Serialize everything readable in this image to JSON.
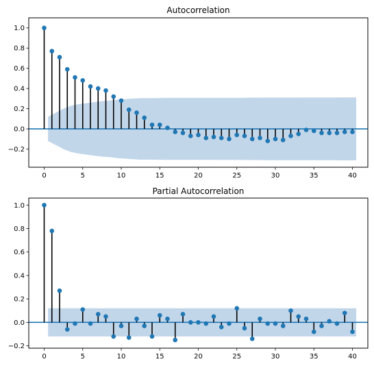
{
  "chart_data": [
    {
      "type": "stem",
      "title": "Autocorrelation",
      "xlabel": "",
      "ylabel": "",
      "xlim": [
        -2,
        42
      ],
      "ylim": [
        -0.38,
        1.1
      ],
      "xticks": [
        0,
        5,
        10,
        15,
        20,
        25,
        30,
        35,
        40
      ],
      "xtick_labels": [
        "0",
        "5",
        "10",
        "15",
        "20",
        "25",
        "30",
        "35",
        "40"
      ],
      "yticks": [
        -0.2,
        0.0,
        0.2,
        0.4,
        0.6,
        0.8,
        1.0
      ],
      "ytick_labels": [
        "−0.2",
        "0.0",
        "0.2",
        "0.4",
        "0.6",
        "0.8",
        "1.0"
      ],
      "grid": false,
      "lags": [
        0,
        1,
        2,
        3,
        4,
        5,
        6,
        7,
        8,
        9,
        10,
        11,
        12,
        13,
        14,
        15,
        16,
        17,
        18,
        19,
        20,
        21,
        22,
        23,
        24,
        25,
        26,
        27,
        28,
        29,
        30,
        31,
        32,
        33,
        34,
        35,
        36,
        37,
        38,
        39,
        40
      ],
      "values": [
        1.0,
        0.77,
        0.71,
        0.59,
        0.51,
        0.48,
        0.42,
        0.4,
        0.38,
        0.32,
        0.28,
        0.19,
        0.16,
        0.11,
        0.04,
        0.04,
        0.01,
        -0.03,
        -0.04,
        -0.07,
        -0.06,
        -0.09,
        -0.08,
        -0.09,
        -0.1,
        -0.06,
        -0.07,
        -0.1,
        -0.09,
        -0.12,
        -0.1,
        -0.11,
        -0.07,
        -0.05,
        -0.01,
        -0.02,
        -0.04,
        -0.04,
        -0.04,
        -0.03,
        -0.03
      ],
      "confidence_band": {
        "lags": [
          0,
          1,
          2,
          3,
          4,
          5,
          6,
          7,
          8,
          9,
          10,
          11,
          12,
          13,
          14,
          15,
          16,
          17,
          18,
          19,
          20,
          21,
          22,
          23,
          24,
          25,
          26,
          27,
          28,
          29,
          30,
          31,
          32,
          33,
          34,
          35,
          36,
          37,
          38,
          39,
          40
        ],
        "upper": [
          0.12,
          0.16,
          0.2,
          0.23,
          0.245,
          0.255,
          0.265,
          0.275,
          0.28,
          0.29,
          0.295,
          0.3,
          0.305,
          0.305,
          0.305,
          0.307,
          0.307,
          0.307,
          0.307,
          0.307,
          0.307,
          0.307,
          0.308,
          0.308,
          0.308,
          0.308,
          0.309,
          0.309,
          0.31,
          0.31,
          0.31,
          0.31,
          0.31,
          0.311,
          0.311,
          0.311,
          0.311,
          0.311,
          0.312,
          0.312,
          0.312
        ]
      },
      "colors": {
        "marker": "#1f77b4",
        "stem": "#000000",
        "band": "#c2d6ea",
        "zero_line": "#1f77b4"
      }
    },
    {
      "type": "stem",
      "title": "Partial Autocorrelation",
      "xlabel": "",
      "ylabel": "",
      "xlim": [
        -2,
        42
      ],
      "ylim": [
        -0.22,
        1.06
      ],
      "xticks": [
        0,
        5,
        10,
        15,
        20,
        25,
        30,
        35,
        40
      ],
      "xtick_labels": [
        "0",
        "5",
        "10",
        "15",
        "20",
        "25",
        "30",
        "35",
        "40"
      ],
      "yticks": [
        -0.2,
        0.0,
        0.2,
        0.4,
        0.6,
        0.8,
        1.0
      ],
      "ytick_labels": [
        "−0.2",
        "0.0",
        "0.2",
        "0.4",
        "0.6",
        "0.8",
        "1.0"
      ],
      "grid": false,
      "lags": [
        0,
        1,
        2,
        3,
        4,
        5,
        6,
        7,
        8,
        9,
        10,
        11,
        12,
        13,
        14,
        15,
        16,
        17,
        18,
        19,
        20,
        21,
        22,
        23,
        24,
        25,
        26,
        27,
        28,
        29,
        30,
        31,
        32,
        33,
        34,
        35,
        36,
        37,
        38,
        39,
        40
      ],
      "values": [
        1.0,
        0.78,
        0.27,
        -0.06,
        -0.01,
        0.11,
        -0.01,
        0.07,
        0.05,
        -0.12,
        -0.03,
        -0.13,
        0.03,
        -0.03,
        -0.12,
        0.06,
        0.03,
        -0.15,
        0.07,
        0.0,
        0.0,
        -0.01,
        0.05,
        -0.04,
        -0.01,
        0.12,
        -0.05,
        -0.14,
        0.03,
        -0.01,
        -0.01,
        -0.03,
        0.1,
        0.05,
        0.03,
        -0.08,
        -0.03,
        0.01,
        -0.01,
        0.08,
        -0.08
      ],
      "confidence_band": {
        "lags": [
          0,
          40
        ],
        "upper": [
          0.12,
          0.12
        ]
      },
      "colors": {
        "marker": "#1f77b4",
        "stem": "#000000",
        "band": "#c2d6ea",
        "zero_line": "#1f77b4"
      }
    }
  ]
}
